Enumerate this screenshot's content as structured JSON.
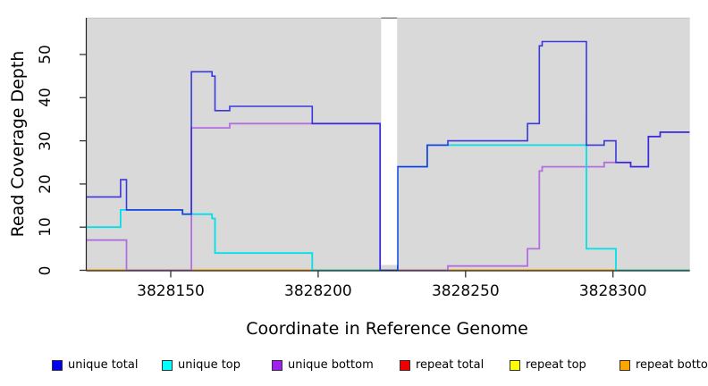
{
  "figure": {
    "background": "#ffffff",
    "plot_background": "#d9d9d9",
    "axis_color": "#222222",
    "plot_top_border_color": "#c6c6c6",
    "mask_top_border_color": "#8d8d8d"
  },
  "chart_data": {
    "type": "line",
    "subtype": "step-coverage",
    "title": "",
    "xlabel": "Coordinate in Reference Genome",
    "ylabel": "Read Coverage Depth",
    "x_range": [
      3828121,
      3828326
    ],
    "y_range": [
      0,
      58
    ],
    "x_ticks": [
      3828150,
      3828200,
      3828250,
      3828300
    ],
    "y_ticks": [
      0,
      10,
      20,
      30,
      40,
      50
    ],
    "grid": false,
    "legend_position": "bottom",
    "masked_region": {
      "start": 3828221,
      "end": 3828227
    },
    "series": [
      {
        "name": "repeat total",
        "line_color": "#dd2222",
        "legend_color": "#ee0000",
        "width": 1.4,
        "opacity": 1,
        "points": [
          [
            3828121,
            0
          ]
        ]
      },
      {
        "name": "repeat top",
        "line_color": "#ffff00",
        "legend_color": "#ffff00",
        "width": 1.4,
        "opacity": 1,
        "points": [
          [
            3828121,
            0
          ]
        ]
      },
      {
        "name": "repeat bottom",
        "line_color": "#ffa500",
        "legend_color": "#ffa500",
        "width": 2.2,
        "opacity": 1,
        "points": [
          [
            3828121,
            0
          ]
        ]
      },
      {
        "name": "unique bottom",
        "line_color": "#b26fe0",
        "legend_color": "#a020f0",
        "width": 1.8,
        "opacity": 1,
        "points": [
          [
            3828121,
            7
          ],
          [
            3828135,
            0
          ],
          [
            3828157,
            33
          ],
          [
            3828170,
            34
          ],
          [
            3828221,
            0
          ],
          [
            3828244,
            1
          ],
          [
            3828271,
            5
          ],
          [
            3828275,
            23
          ],
          [
            3828276,
            24
          ],
          [
            3828297,
            25
          ],
          [
            3828306,
            24
          ],
          [
            3828312,
            31
          ],
          [
            3828316,
            32
          ]
        ]
      },
      {
        "name": "unique top",
        "line_color": "#00e0ea",
        "legend_color": "#00ffff",
        "width": 1.8,
        "opacity": 1,
        "points": [
          [
            3828121,
            10
          ],
          [
            3828133,
            14
          ],
          [
            3828154,
            13
          ],
          [
            3828164,
            12
          ],
          [
            3828165,
            4
          ],
          [
            3828198,
            0
          ],
          [
            3828227,
            24
          ],
          [
            3828237,
            29
          ],
          [
            3828291,
            5
          ],
          [
            3828301,
            0
          ]
        ]
      },
      {
        "name": "unique total",
        "line_color": "#2222dd",
        "legend_color": "#0000ee",
        "width": 1.6,
        "opacity": 0.88,
        "points": [
          [
            3828121,
            17
          ],
          [
            3828133,
            21
          ],
          [
            3828135,
            14
          ],
          [
            3828154,
            13
          ],
          [
            3828157,
            46
          ],
          [
            3828164,
            45
          ],
          [
            3828165,
            37
          ],
          [
            3828170,
            38
          ],
          [
            3828198,
            34
          ],
          [
            3828221,
            0
          ],
          [
            3828227,
            24
          ],
          [
            3828237,
            29
          ],
          [
            3828244,
            30
          ],
          [
            3828271,
            34
          ],
          [
            3828275,
            52
          ],
          [
            3828276,
            53
          ],
          [
            3828291,
            29
          ],
          [
            3828297,
            30
          ],
          [
            3828301,
            25
          ],
          [
            3828306,
            24
          ],
          [
            3828312,
            31
          ],
          [
            3828316,
            32
          ]
        ]
      }
    ]
  },
  "legend": {
    "items": [
      {
        "label": "unique total",
        "color": "#0000ee"
      },
      {
        "label": "unique top",
        "color": "#00ffff"
      },
      {
        "label": "unique bottom",
        "color": "#a020f0"
      },
      {
        "label": "repeat total",
        "color": "#ee0000"
      },
      {
        "label": "repeat top",
        "color": "#ffff00"
      },
      {
        "label": "repeat bottom",
        "color": "#ffa500"
      }
    ]
  }
}
